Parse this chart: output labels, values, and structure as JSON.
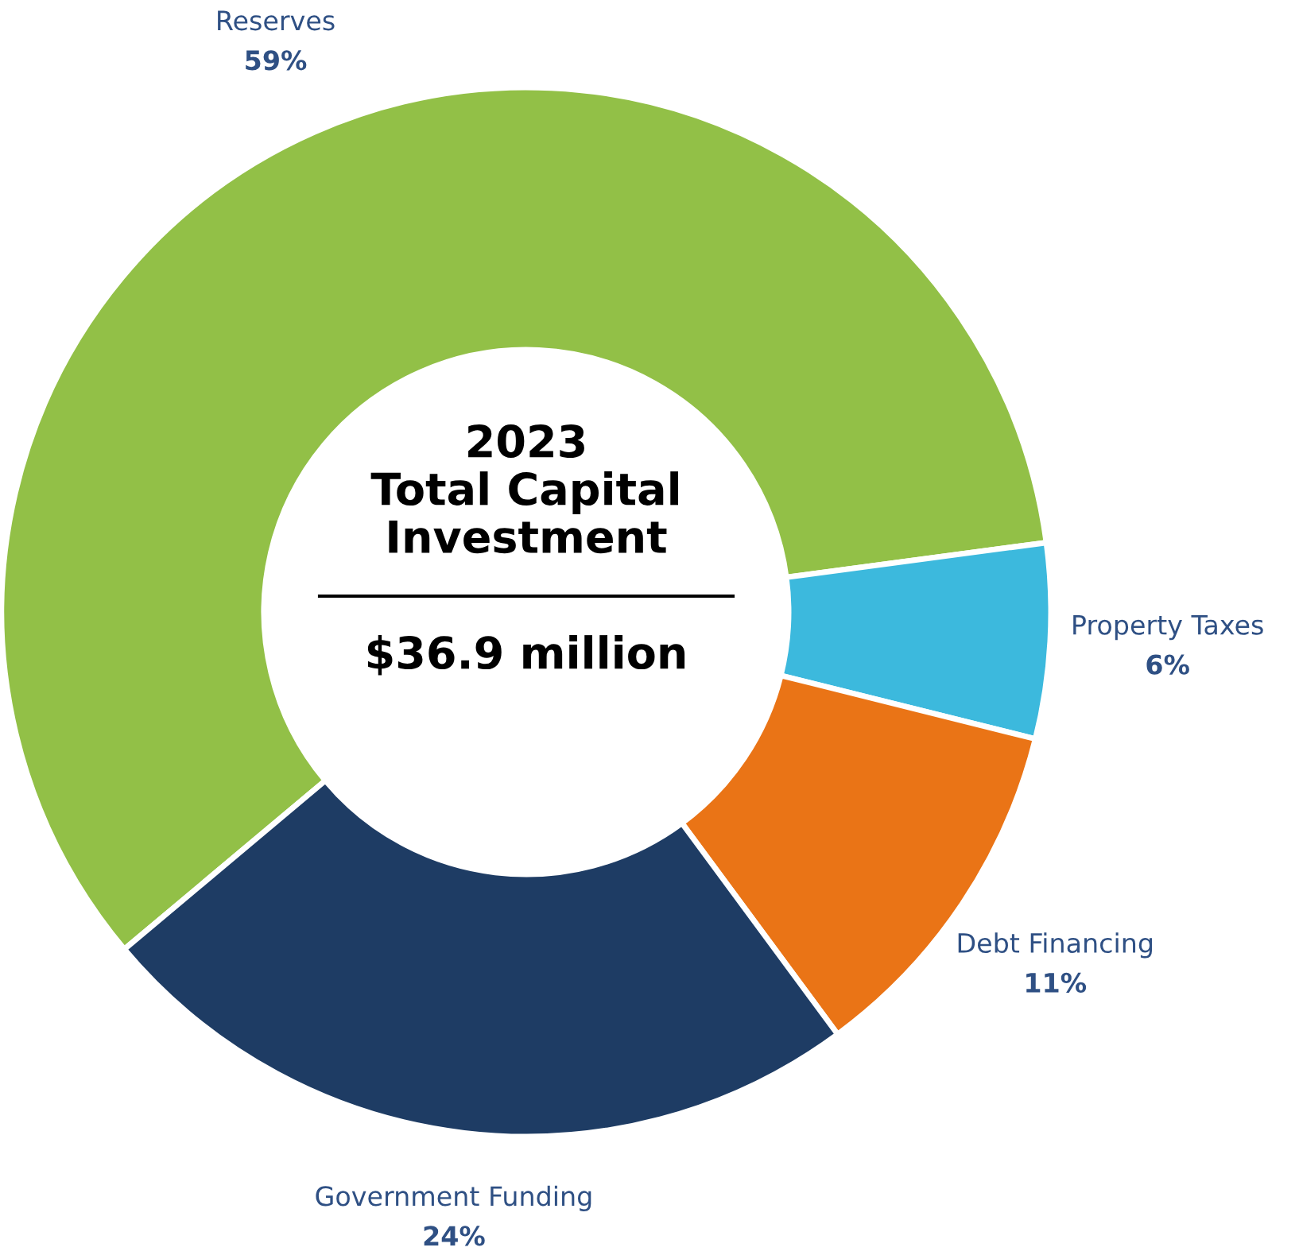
{
  "chart_data": {
    "type": "donut",
    "title": "2023\nTotal Capital\nInvestment",
    "annotations": [
      "$36.9 million"
    ],
    "categories": [
      "Reserves",
      "Property Taxes",
      "Debt Financing",
      "Government Funding"
    ],
    "values": [
      59,
      6,
      11,
      24
    ],
    "colors": [
      "#92c047",
      "#3cb9dd",
      "#ea7416",
      "#1e3c64"
    ],
    "value_labels": [
      "59%",
      "6%",
      "11%",
      "24%"
    ],
    "legend": false
  }
}
